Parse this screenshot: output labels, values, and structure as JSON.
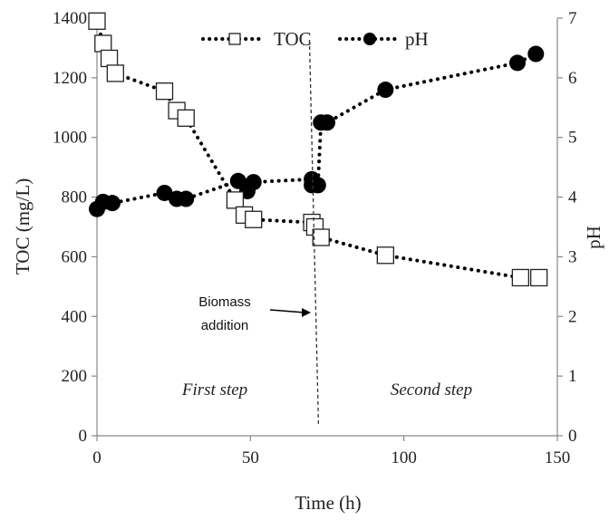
{
  "chart_data": {
    "type": "line",
    "xlabel": "Time  (h)",
    "ylabel": "TOC (mg/L)",
    "y2label": "pH",
    "xlim": [
      0,
      150
    ],
    "ylim": [
      0,
      1400
    ],
    "y2lim": [
      0,
      7
    ],
    "xticks": [
      0,
      50,
      100,
      150
    ],
    "yticks": [
      0,
      200,
      400,
      600,
      800,
      1000,
      1200,
      1400
    ],
    "y2ticks": [
      0,
      1,
      2,
      3,
      4,
      5,
      6,
      7
    ],
    "grid": false,
    "legend": "top-center",
    "series": [
      {
        "name": "TOC",
        "axis": "left",
        "marker": "open-square",
        "line": "dotted",
        "x": [
          0,
          2,
          4,
          6,
          22,
          26,
          29,
          45,
          48,
          51,
          70,
          71,
          73,
          94,
          138,
          144
        ],
        "y": [
          1390,
          1315,
          1265,
          1215,
          1155,
          1090,
          1065,
          790,
          740,
          725,
          715,
          700,
          665,
          605,
          530,
          530
        ]
      },
      {
        "name": "pH",
        "axis": "right",
        "marker": "filled-circle",
        "line": "dotted",
        "x": [
          0,
          2,
          5,
          22,
          26,
          29,
          46,
          49,
          51,
          70,
          70,
          72,
          73,
          75,
          94,
          137,
          143
        ],
        "y": [
          3.8,
          3.92,
          3.9,
          4.07,
          3.97,
          3.97,
          4.27,
          4.1,
          4.25,
          4.3,
          4.2,
          4.2,
          5.25,
          5.25,
          5.8,
          6.25,
          6.4
        ]
      }
    ],
    "annotations": {
      "vline_x": 71,
      "biomass": [
        "Biomass",
        "addition"
      ],
      "first_step": "First step",
      "second_step": "Second step"
    }
  }
}
